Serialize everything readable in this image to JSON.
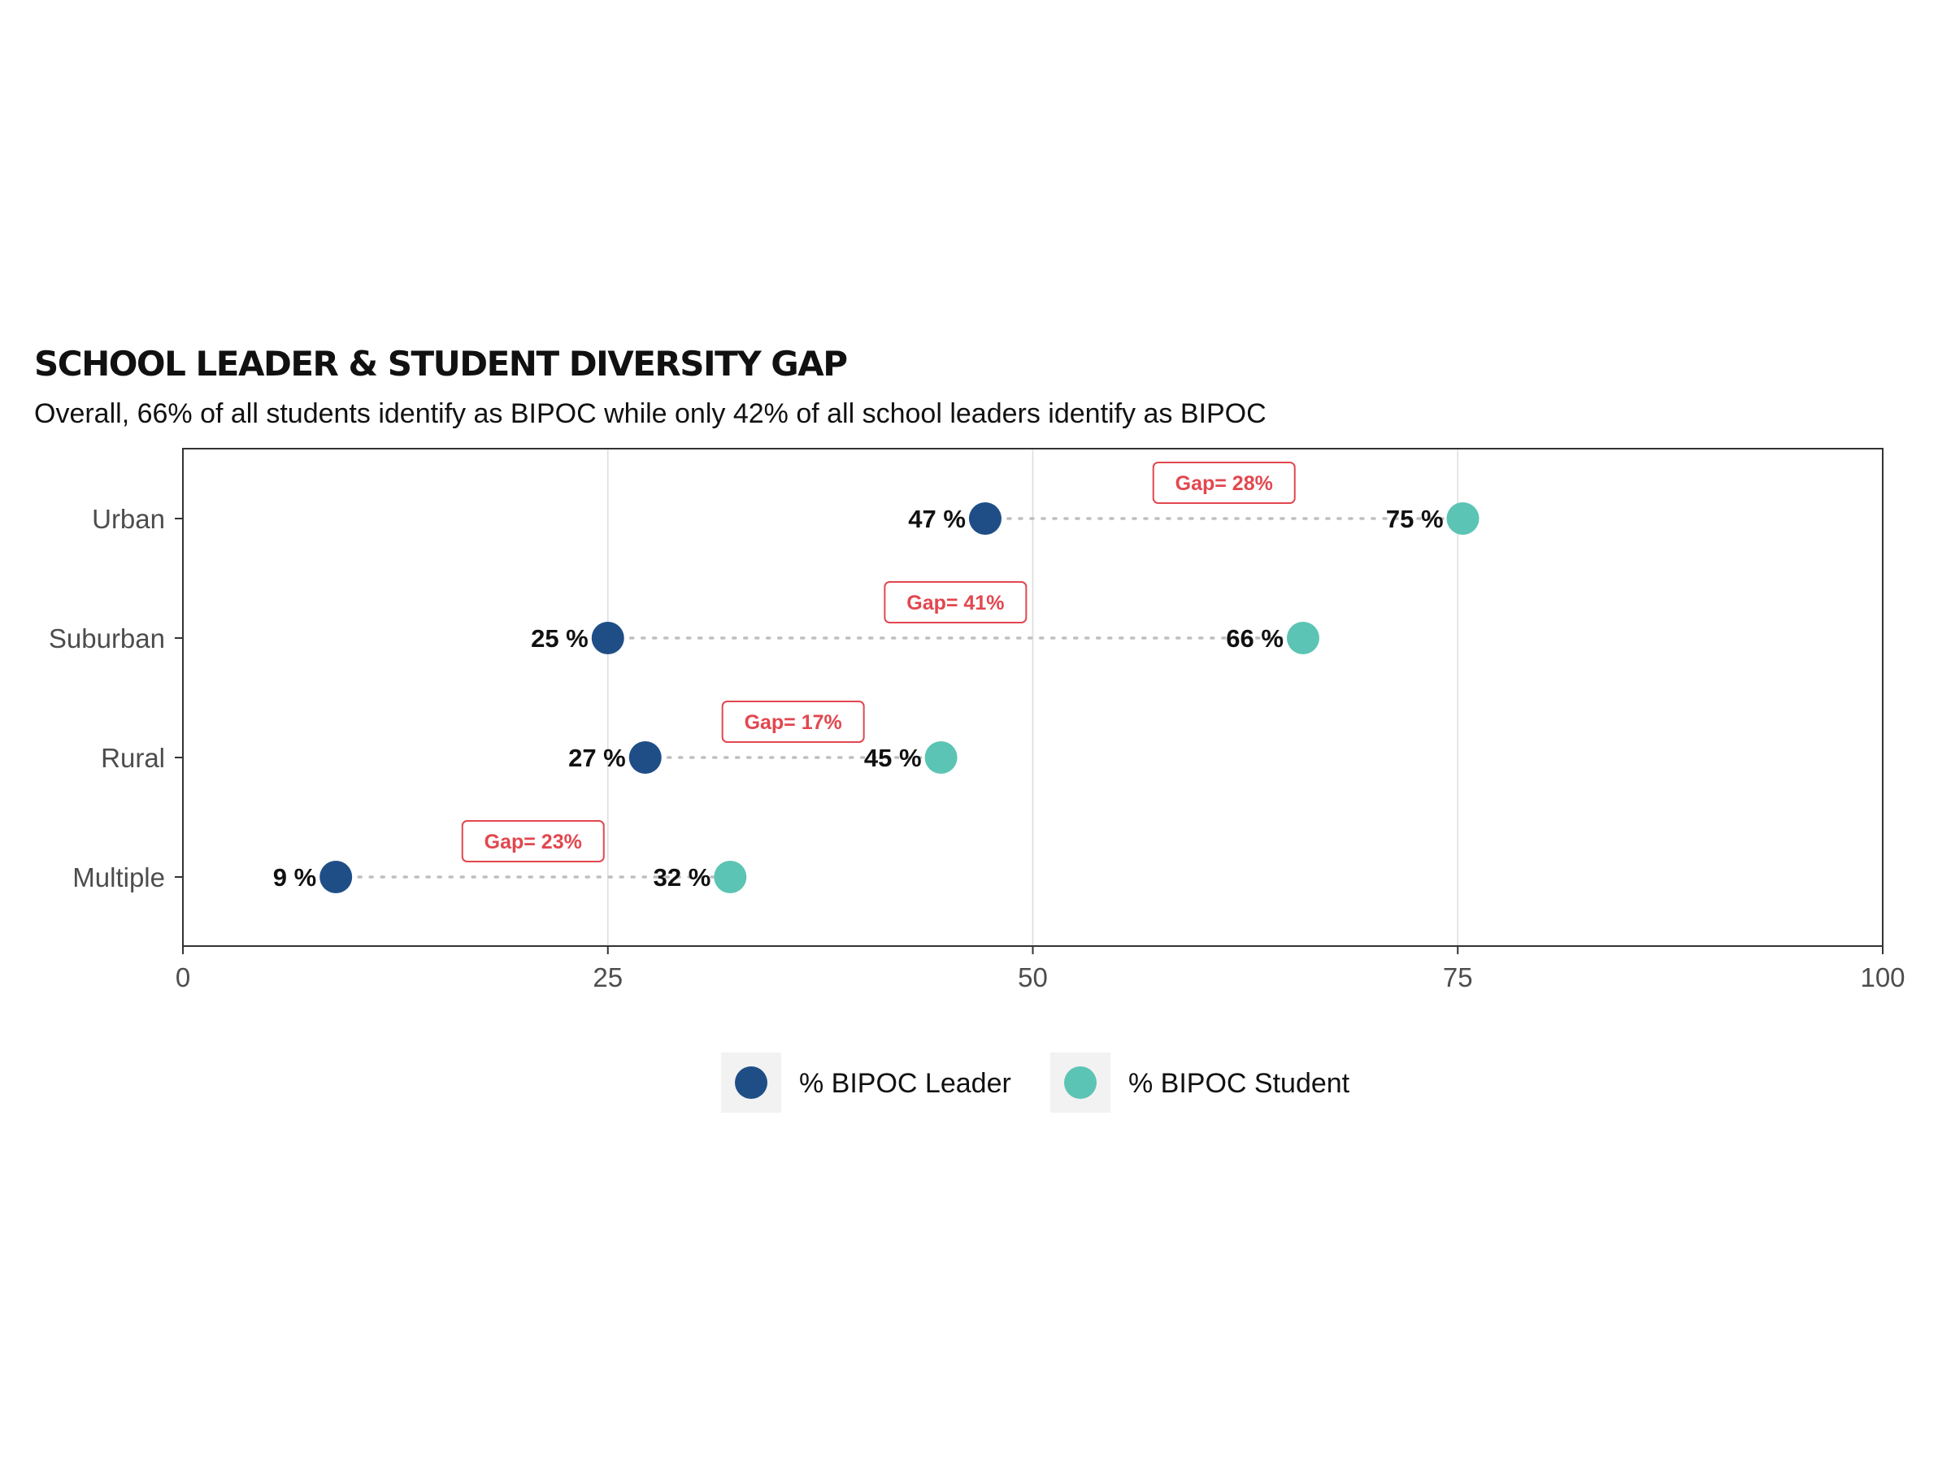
{
  "chart_data": {
    "type": "scatter",
    "subtype": "dumbbell",
    "title": "SCHOOL LEADER & STUDENT DIVERSITY GAP",
    "subtitle": "Overall, 66% of all students identify as BIPOC while only 42% of all school leaders identify as BIPOC",
    "xlabel": "",
    "ylabel": "",
    "xlim": [
      0,
      100
    ],
    "x_ticks": [
      "0",
      "25",
      "50",
      "75",
      "100"
    ],
    "categories": [
      "Urban",
      "Suburban",
      "Rural",
      "Multiple"
    ],
    "series": [
      {
        "name": "% BIPOC Leader",
        "color": "#1f4e87",
        "values": [
          47.2,
          25.0,
          27.2,
          9.0
        ],
        "labels": [
          "47 %",
          "25 %",
          "27 %",
          "9 %"
        ]
      },
      {
        "name": "% BIPOC Student",
        "color": "#5cc4b4",
        "values": [
          75.3,
          65.9,
          44.6,
          32.2
        ],
        "labels": [
          "75 %",
          "66 %",
          "45 %",
          "32 %"
        ]
      }
    ],
    "gaps": [
      "Gap= 28%",
      "Gap= 41%",
      "Gap= 17%",
      "Gap= 23%"
    ],
    "grid": "vertical major",
    "legend_position": "bottom",
    "colors": {
      "leader": "#1f4e87",
      "student": "#5cc4b4",
      "gap_label": "#e2474f",
      "connector": "#bfbfbf"
    }
  }
}
